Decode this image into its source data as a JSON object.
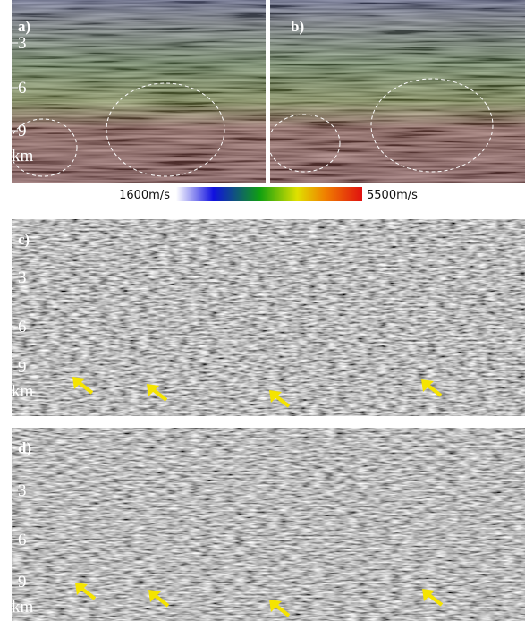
{
  "panels": [
    {
      "label": "a)",
      "depth_labels": [
        "3",
        "6",
        "9"
      ],
      "unit": "km"
    },
    {
      "label": "b)"
    },
    {
      "label": "c)",
      "depth_labels": [
        "3",
        "6",
        "9"
      ],
      "unit": "km"
    },
    {
      "label": "d)",
      "depth_labels": [
        "3",
        "6",
        "9"
      ],
      "unit": "km"
    }
  ],
  "colorbar": {
    "min_label": "1600m/s",
    "max_label": "5500m/s"
  }
}
